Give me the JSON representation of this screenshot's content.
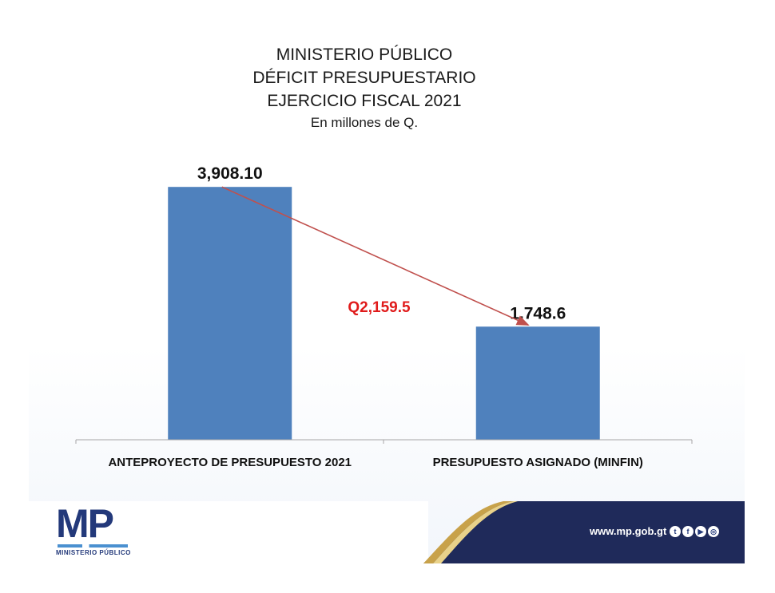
{
  "header": {
    "title_lines": [
      "MINISTERIO PÚBLICO",
      "DÉFICIT PRESUPUESTARIO",
      "EJERCICIO FISCAL 2021"
    ],
    "subtitle": "En millones de Q."
  },
  "chart_data": {
    "type": "bar",
    "title": "MINISTERIO PÚBLICO DÉFICIT PRESUPUESTARIO EJERCICIO FISCAL 2021",
    "subtitle": "En millones de Q.",
    "categories": [
      "ANTEPROYECTO DE PRESUPUESTO 2021",
      "PRESUPUESTO ASIGNADO (MINFIN)"
    ],
    "values": [
      3908.1,
      1748.6
    ],
    "value_labels": [
      "3,908.10",
      "1,748.6"
    ],
    "ylim": [
      0,
      4700
    ],
    "grid": false,
    "bar_color": "#4f81bd",
    "annotation": {
      "text": "Q2,159.5",
      "color": "#e01b1b",
      "arrow_color": "#c0504d",
      "from_category": 0,
      "to_category": 1
    }
  },
  "footer": {
    "logo_letters": "MP",
    "logo_subtitle": "MINISTERIO PÚBLICO",
    "website": "www.mp.gob.gt",
    "social_icons": [
      "twitter-icon",
      "facebook-icon",
      "youtube-icon",
      "instagram-icon"
    ],
    "band_color": "#1f2a5a",
    "accent_color": "#c8a24a"
  }
}
